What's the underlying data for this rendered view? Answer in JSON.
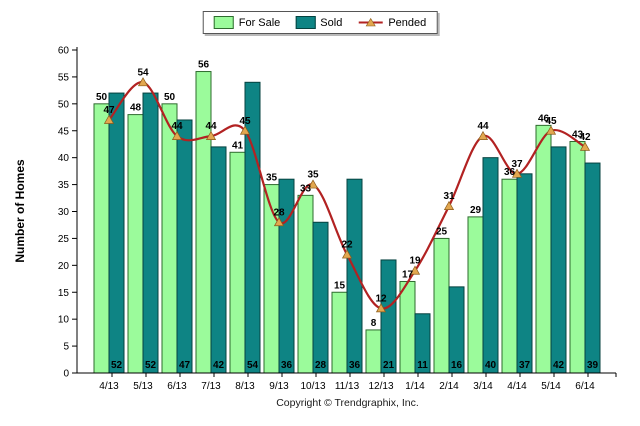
{
  "legend": {
    "items": [
      {
        "label": "For Sale",
        "color": "#9BFB9B",
        "border": "#2e6b2e",
        "type": "swatch"
      },
      {
        "label": "Sold",
        "color": "#0E8484",
        "border": "#05423f",
        "type": "swatch"
      },
      {
        "label": "Pended",
        "color": "#B22222",
        "marker_color": "#E2A74F",
        "type": "line-marker"
      }
    ]
  },
  "footer": {
    "copyright": "Copyright © Trendgraphix, Inc."
  },
  "chart_data": {
    "type": "bar",
    "title": "",
    "xlabel": "",
    "ylabel": "Number of Homes",
    "ylim": [
      0,
      60
    ],
    "ytick_step": 5,
    "grid": false,
    "legend_position": "top-center",
    "categories": [
      "4/13",
      "5/13",
      "6/13",
      "7/13",
      "8/13",
      "9/13",
      "10/13",
      "11/13",
      "12/13",
      "1/14",
      "2/14",
      "3/14",
      "4/14",
      "5/14",
      "6/14"
    ],
    "series": [
      {
        "name": "For Sale",
        "type": "bar",
        "color": "#9BFB9B",
        "border": "#2e6b2e",
        "values": [
          50,
          48,
          50,
          56,
          41,
          35,
          33,
          15,
          8,
          17,
          25,
          29,
          36,
          46,
          43
        ],
        "label_position": "above-bar"
      },
      {
        "name": "Sold",
        "type": "bar",
        "color": "#0E8484",
        "border": "#05423f",
        "values": [
          52,
          52,
          47,
          42,
          54,
          36,
          28,
          36,
          21,
          11,
          16,
          40,
          37,
          42,
          39
        ],
        "label_position": "inside-bar-bottom"
      },
      {
        "name": "Pended",
        "type": "line",
        "color": "#B22222",
        "marker": "triangle",
        "marker_color": "#E2A74F",
        "values": [
          47,
          54,
          44,
          44,
          45,
          28,
          35,
          22,
          12,
          19,
          31,
          44,
          37,
          45,
          42
        ],
        "label_position": "above-marker"
      }
    ]
  }
}
